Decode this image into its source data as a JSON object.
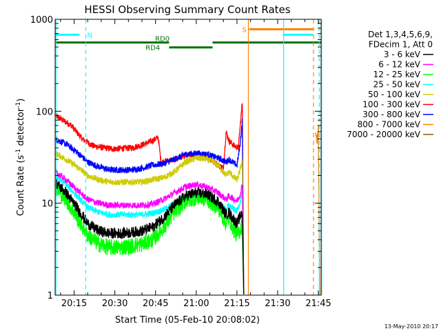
{
  "chart_data": {
    "type": "line",
    "title": "HESSI Observing Summary Count Rates",
    "xlabel": "Start Time (05-Feb-10 20:08:02)",
    "ylabel": "Count Rate (s⁻¹ detector⁻¹)",
    "ylabel_base": "Count Rate (s",
    "ylabel_exp1": "-1",
    "ylabel_mid": " detector",
    "ylabel_exp2": "-1",
    "ylabel_end": ")",
    "yscale": "log",
    "xlim_min": [
      8,
      106
    ],
    "ylim": [
      1,
      1000
    ],
    "x_ticks": [
      {
        "min": 15,
        "label": "20:15"
      },
      {
        "min": 30,
        "label": "20:30"
      },
      {
        "min": 45,
        "label": "20:45"
      },
      {
        "min": 60,
        "label": "21:00"
      },
      {
        "min": 75,
        "label": "21:15"
      },
      {
        "min": 90,
        "label": "21:30"
      },
      {
        "min": 105,
        "label": "21:45"
      }
    ],
    "y_ticks": [
      {
        "value": 1,
        "label": "1"
      },
      {
        "value": 10,
        "label": "10"
      },
      {
        "value": 100,
        "label": "100"
      },
      {
        "value": 1000,
        "label": "1000"
      }
    ],
    "legend": {
      "placement": "right",
      "header": [
        "Det 1,3,4,5,6,9,",
        "FDecim 1, Att 0"
      ],
      "entries": [
        {
          "label": "3 - 6 keV",
          "color": "#000000"
        },
        {
          "label": "6 - 12 keV",
          "color": "#ff00ff"
        },
        {
          "label": "12 - 25 keV",
          "color": "#00ff00"
        },
        {
          "label": "25 - 50 keV",
          "color": "#00ffff"
        },
        {
          "label": "50 - 100 keV",
          "color": "#cccc00"
        },
        {
          "label": "100 - 300 keV",
          "color": "#ff0000"
        },
        {
          "label": "300 - 800 keV",
          "color": "#0000ff"
        },
        {
          "label": "800 - 7000 keV",
          "color": "#ff8000"
        },
        {
          "label": "7000 - 20000 keV",
          "color": "#806000"
        }
      ]
    },
    "series": [
      {
        "name": "100 - 300 keV",
        "color": "#ff0000",
        "x": [
          8,
          14,
          18,
          22,
          26,
          30,
          36,
          40,
          44,
          46,
          47,
          52,
          56,
          60,
          64,
          66,
          68,
          70,
          71,
          72,
          74,
          75.5,
          77
        ],
        "y": [
          90,
          70,
          50,
          42,
          40,
          39,
          40,
          43,
          48,
          52,
          28,
          30,
          33,
          34,
          32,
          29,
          26,
          24,
          60,
          48,
          42,
          40,
          130
        ],
        "dropout": 77.5
      },
      {
        "name": "300 - 800 keV",
        "color": "#0000ff",
        "x": [
          8,
          12,
          16,
          20,
          24,
          28,
          32,
          36,
          40,
          44,
          48,
          52,
          56,
          60,
          64,
          68,
          71,
          72,
          74,
          75,
          76,
          77
        ],
        "y": [
          50,
          44,
          36,
          28,
          25,
          23,
          23,
          23,
          24,
          26,
          27,
          30,
          34,
          35,
          34,
          31,
          28,
          30,
          27,
          26,
          40,
          80
        ],
        "dropout": 77.5
      },
      {
        "name": "50 - 100 keV",
        "color": "#cccc00",
        "x": [
          8,
          12,
          16,
          20,
          24,
          28,
          32,
          36,
          40,
          44,
          48,
          52,
          56,
          60,
          64,
          68,
          71,
          72,
          74,
          75,
          76,
          77
        ],
        "y": [
          35,
          30,
          25,
          20,
          18,
          17,
          17,
          17,
          17,
          18,
          19,
          22,
          28,
          31,
          30,
          26,
          20,
          22,
          19,
          18,
          22,
          30
        ],
        "dropout": 77.5
      },
      {
        "name": "25 - 50 keV",
        "color": "#00ffff",
        "x": [
          8,
          12,
          16,
          20,
          24,
          28,
          32,
          36,
          40,
          44,
          48,
          52,
          56,
          60,
          64,
          68,
          71,
          72,
          74,
          75,
          76,
          77
        ],
        "y": [
          20,
          16,
          12,
          9,
          8,
          7.5,
          7.5,
          7.5,
          7.5,
          7.8,
          8.5,
          10,
          11.5,
          12,
          11.5,
          10,
          8.5,
          9.5,
          8.5,
          8.2,
          10,
          13
        ],
        "dropout": 77.5
      },
      {
        "name": "6 - 12 keV",
        "color": "#ff00ff",
        "x": [
          8,
          12,
          16,
          20,
          24,
          28,
          32,
          36,
          40,
          44,
          48,
          52,
          56,
          60,
          64,
          68,
          71,
          72,
          74,
          75,
          76,
          77
        ],
        "y": [
          22,
          18,
          14,
          11,
          10,
          9.5,
          9.5,
          9.5,
          9.5,
          9.8,
          11,
          13,
          15,
          16,
          15,
          13,
          11,
          12,
          11,
          10.5,
          12,
          16
        ],
        "dropout": 77.5
      },
      {
        "name": "12 - 25 keV",
        "color": "#00ff00",
        "x": [
          8,
          12,
          16,
          20,
          24,
          28,
          32,
          36,
          40,
          44,
          48,
          52,
          56,
          60,
          64,
          68,
          71,
          72,
          74,
          75,
          76,
          77
        ],
        "y": [
          15,
          11,
          7,
          4.5,
          3.6,
          3.3,
          3.3,
          3.4,
          3.6,
          4.0,
          5.5,
          8,
          10.5,
          11.5,
          11,
          9,
          6,
          7,
          5,
          4.5,
          5,
          6
        ],
        "dropout": 77.5
      },
      {
        "name": "3 - 6 keV",
        "color": "#000000",
        "x": [
          8,
          12,
          16,
          20,
          24,
          28,
          32,
          36,
          40,
          44,
          48,
          52,
          56,
          60,
          64,
          68,
          71,
          72,
          74,
          75,
          76,
          77
        ],
        "y": [
          17,
          13,
          9,
          6,
          5,
          4.7,
          4.7,
          4.8,
          5,
          5.5,
          7,
          9.5,
          12,
          13,
          12.5,
          10.5,
          7.5,
          8,
          6.5,
          6,
          7,
          8
        ],
        "dropout": 77.5
      },
      {
        "name": "800 - 7000 keV",
        "color": "#ff8000",
        "x": [
          104,
          104.5,
          105
        ],
        "y": [
          60,
          45,
          70
        ],
        "dropout": 105.5
      }
    ],
    "flags": [
      {
        "label": "N",
        "color": "#00ffff",
        "y": 680,
        "segments": [
          [
            8,
            17
          ],
          [
            92,
            103
          ]
        ]
      },
      {
        "label": "S",
        "color": "#ff8000",
        "y": 780,
        "segments": [
          [
            79.5,
            103
          ]
        ]
      },
      {
        "label": "RD0",
        "color": "#007000",
        "y": 560,
        "segments": [
          [
            8,
            50
          ],
          [
            66,
            106
          ]
        ]
      },
      {
        "label": "RD4",
        "color": "#007000",
        "y": 495,
        "segments": [
          [
            50,
            66
          ]
        ]
      }
    ],
    "vlines": [
      {
        "x": 8.3,
        "color": "#00ffff",
        "dash": false
      },
      {
        "x": 19.3,
        "color": "#00ffff",
        "dash": true
      },
      {
        "x": 79.2,
        "color": "#ff8000",
        "dash": false
      },
      {
        "x": 92.2,
        "color": "#00ffff",
        "dash": false
      },
      {
        "x": 103.2,
        "color": "#ff8000",
        "dash": true
      },
      {
        "x": 105.3,
        "color": "#00ffff",
        "dash": true
      },
      {
        "x": 106.2,
        "color": "#00ffff",
        "dash": false
      }
    ]
  },
  "footer_timestamp": "13-May-2010 20:17"
}
